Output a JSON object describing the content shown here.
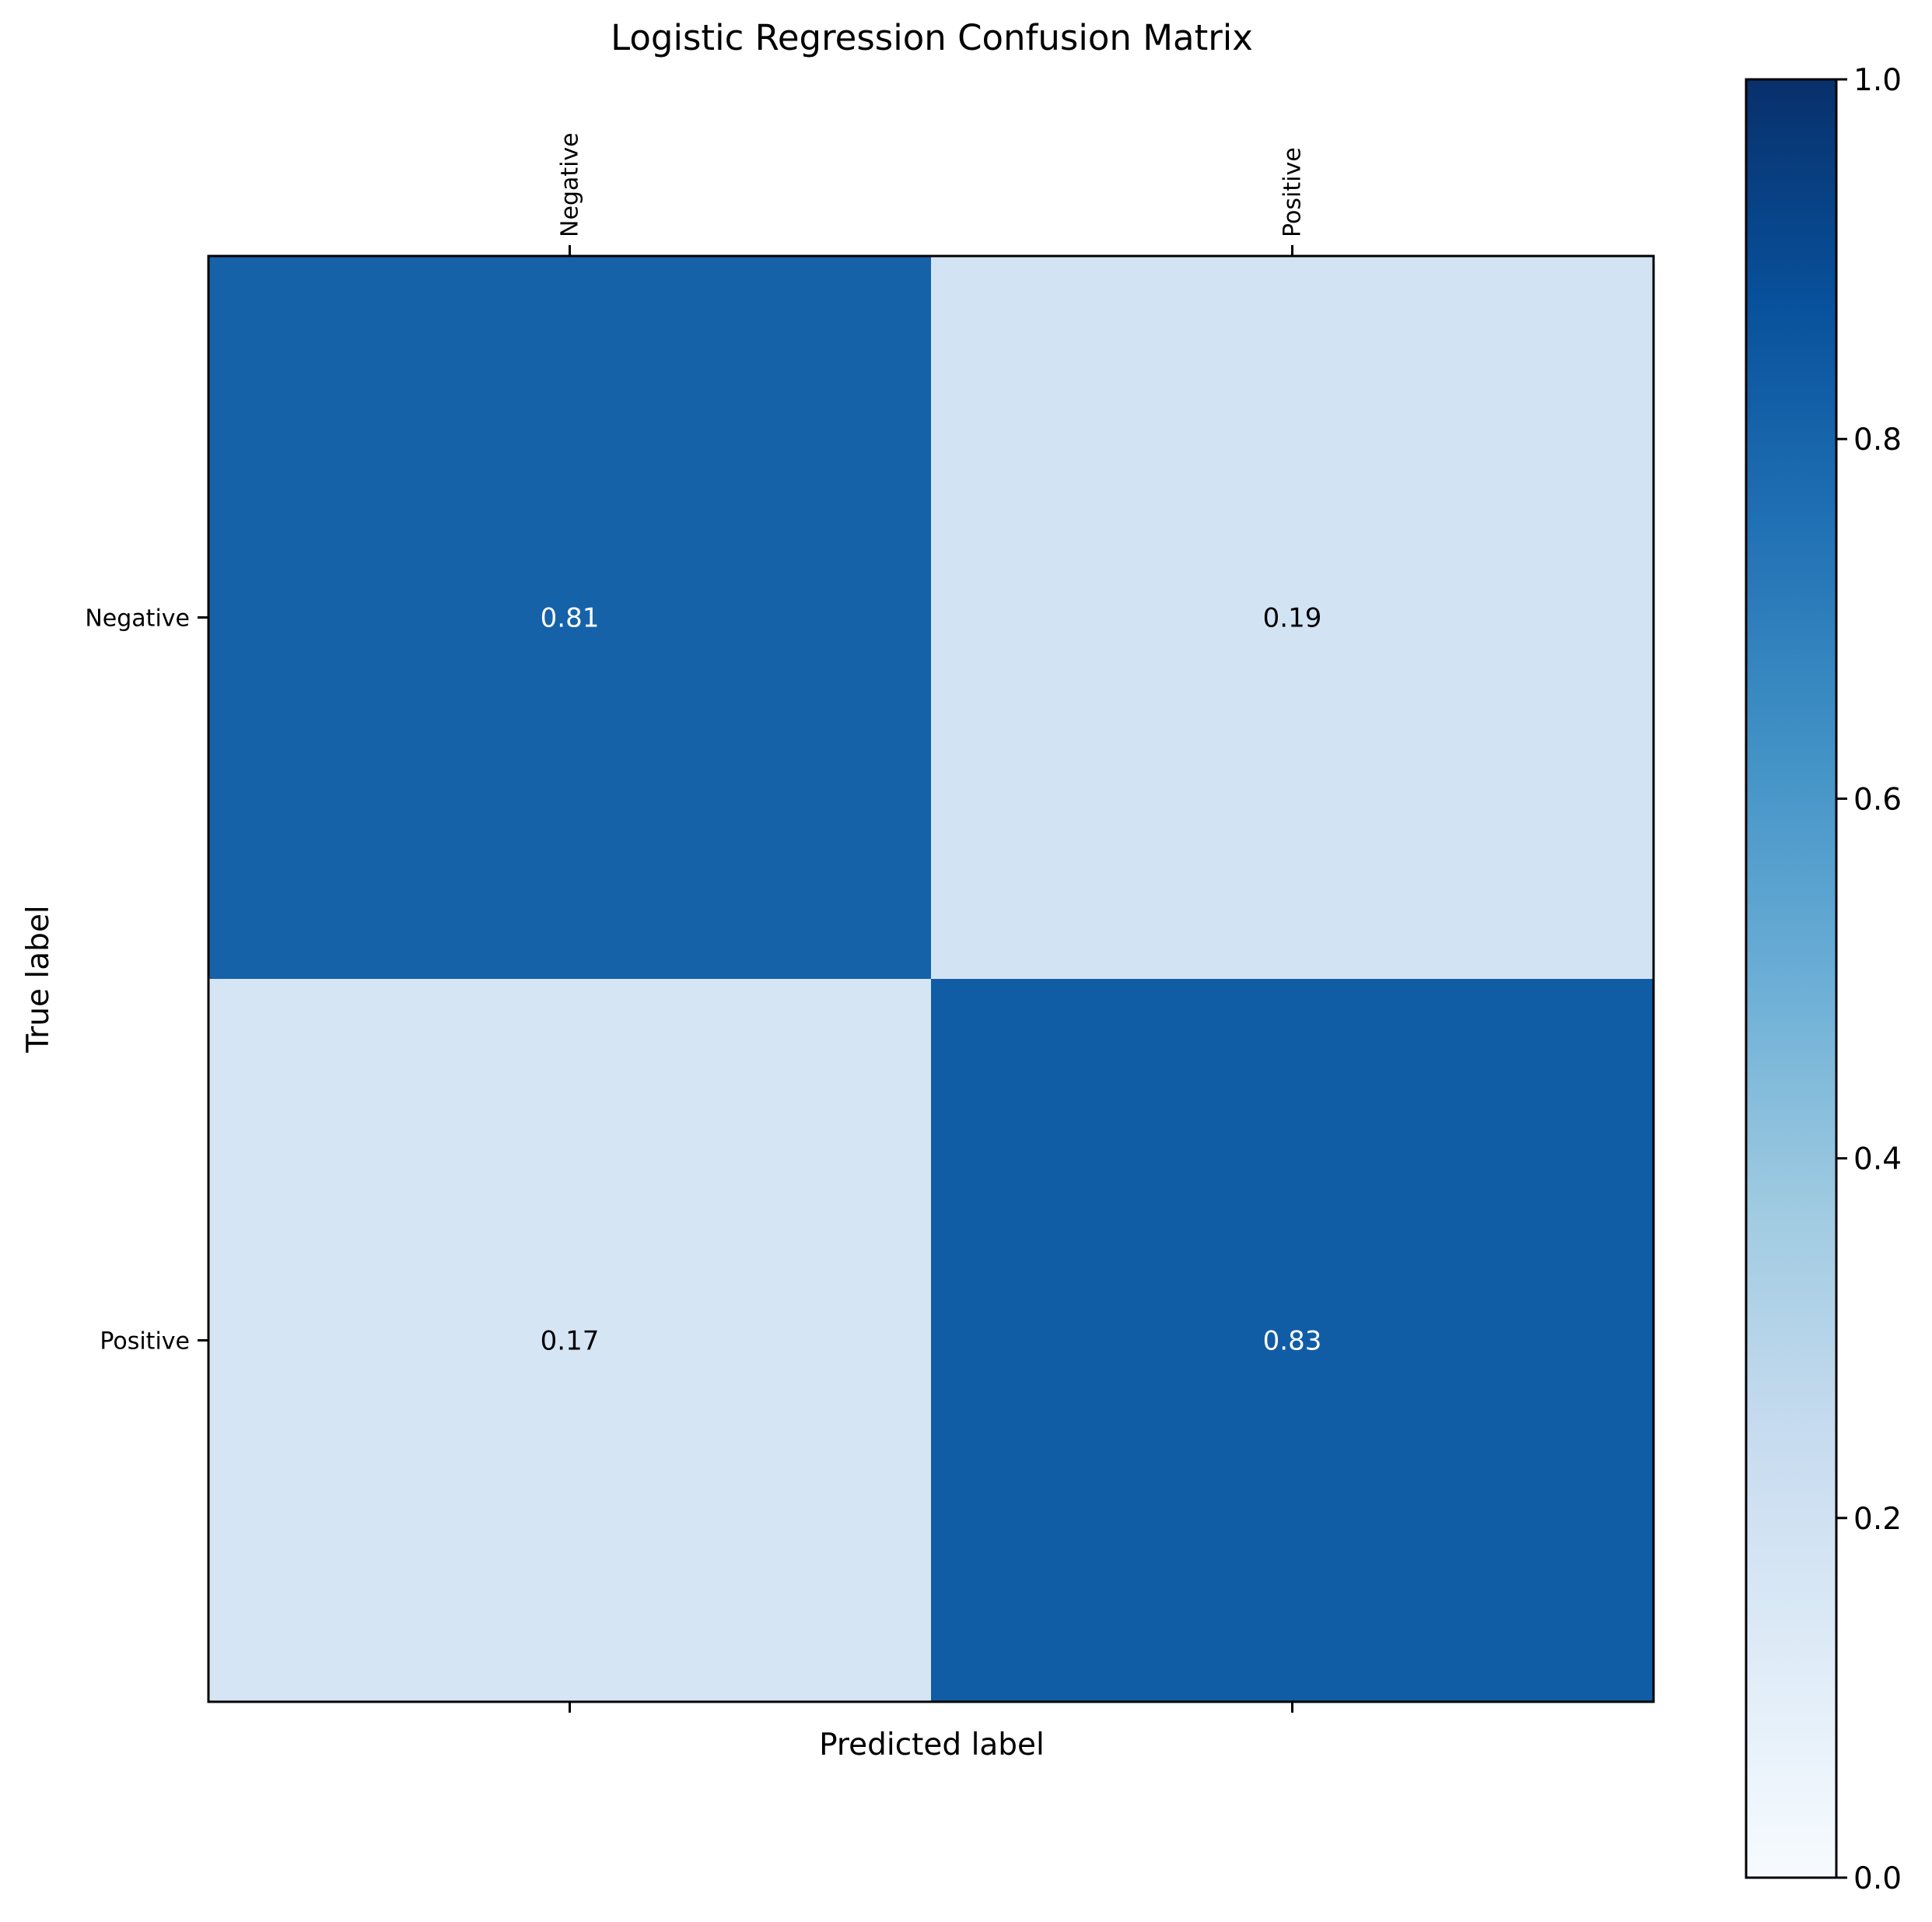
{
  "chart_data": {
    "type": "heatmap",
    "title": "Logistic Regression Confusion Matrix",
    "xlabel": "Predicted label",
    "ylabel": "True label",
    "x_categories": [
      "Negative",
      "Positive"
    ],
    "y_categories": [
      "Negative",
      "Positive"
    ],
    "values": [
      [
        0.81,
        0.19
      ],
      [
        0.17,
        0.83
      ]
    ],
    "cell_labels": [
      [
        "0.81",
        "0.19"
      ],
      [
        "0.17",
        "0.83"
      ]
    ],
    "x_tick_position": "top",
    "colormap": "Blues",
    "colorbar": {
      "range": [
        0.0,
        1.0
      ],
      "ticks": [
        0.0,
        0.2,
        0.4,
        0.6,
        0.8,
        1.0
      ],
      "tick_labels": [
        "0.0",
        "0.2",
        "0.4",
        "0.6",
        "0.8",
        "1.0"
      ]
    },
    "grid": false
  }
}
